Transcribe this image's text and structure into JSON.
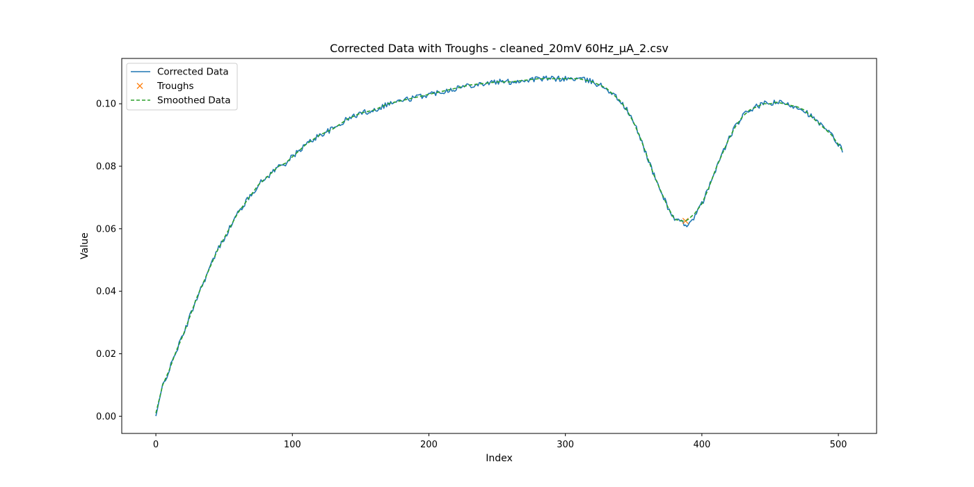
{
  "chart_data": {
    "type": "line",
    "title": "Corrected Data with Troughs - cleaned_20mV 60Hz_µA_2.csv",
    "xlabel": "Index",
    "ylabel": "Value",
    "xlim": [
      -25,
      528
    ],
    "ylim": [
      -0.0055,
      0.1145
    ],
    "xticks": [
      0,
      100,
      200,
      300,
      400,
      500
    ],
    "yticks": [
      0.0,
      0.02,
      0.04,
      0.06,
      0.08,
      0.1
    ],
    "ytick_labels": [
      "0.00",
      "0.02",
      "0.04",
      "0.06",
      "0.08",
      "0.10"
    ],
    "grid": false,
    "legend_position": "top-left",
    "series": [
      {
        "name": "Corrected Data",
        "style": "solid",
        "color": "#1f77b4",
        "x": [
          0,
          5,
          10,
          15,
          20,
          25,
          30,
          35,
          40,
          45,
          50,
          55,
          60,
          65,
          70,
          75,
          80,
          85,
          90,
          95,
          100,
          110,
          120,
          130,
          140,
          150,
          160,
          170,
          180,
          190,
          200,
          210,
          220,
          230,
          240,
          250,
          260,
          270,
          280,
          290,
          300,
          310,
          320,
          330,
          335,
          340,
          345,
          350,
          355,
          360,
          365,
          370,
          375,
          380,
          385,
          388,
          390,
          395,
          400,
          405,
          410,
          415,
          420,
          425,
          430,
          435,
          440,
          445,
          450,
          455,
          460,
          465,
          470,
          475,
          480,
          485,
          490,
          495,
          500,
          503
        ],
        "y": [
          0.0,
          0.01,
          0.015,
          0.021,
          0.026,
          0.032,
          0.038,
          0.043,
          0.048,
          0.053,
          0.057,
          0.061,
          0.065,
          0.068,
          0.071,
          0.074,
          0.076,
          0.078,
          0.08,
          0.081,
          0.083,
          0.087,
          0.09,
          0.092,
          0.095,
          0.097,
          0.098,
          0.1,
          0.101,
          0.102,
          0.103,
          0.104,
          0.105,
          0.106,
          0.1065,
          0.107,
          0.107,
          0.1075,
          0.108,
          0.108,
          0.108,
          0.108,
          0.107,
          0.105,
          0.103,
          0.101,
          0.098,
          0.094,
          0.089,
          0.083,
          0.077,
          0.072,
          0.067,
          0.063,
          0.062,
          0.0605,
          0.062,
          0.064,
          0.068,
          0.073,
          0.079,
          0.084,
          0.089,
          0.093,
          0.096,
          0.098,
          0.099,
          0.1,
          0.1,
          0.1005,
          0.1,
          0.0995,
          0.099,
          0.098,
          0.096,
          0.094,
          0.092,
          0.09,
          0.087,
          0.085
        ]
      },
      {
        "name": "Troughs",
        "style": "marker-x",
        "color": "#ff7f0e",
        "x": [
          388
        ],
        "y": [
          0.0625
        ]
      },
      {
        "name": "Smoothed Data",
        "style": "dashed",
        "color": "#2ca02c",
        "x": [
          0,
          5,
          10,
          15,
          20,
          25,
          30,
          35,
          40,
          45,
          50,
          55,
          60,
          65,
          70,
          75,
          80,
          85,
          90,
          95,
          100,
          110,
          120,
          130,
          140,
          150,
          160,
          170,
          180,
          190,
          200,
          210,
          220,
          230,
          240,
          250,
          260,
          270,
          280,
          290,
          300,
          310,
          320,
          330,
          335,
          340,
          345,
          350,
          355,
          360,
          365,
          370,
          375,
          380,
          385,
          388,
          390,
          395,
          400,
          405,
          410,
          415,
          420,
          425,
          430,
          435,
          440,
          445,
          450,
          455,
          460,
          465,
          470,
          475,
          480,
          485,
          490,
          495,
          500,
          503
        ],
        "y": [
          0.001,
          0.01,
          0.015,
          0.021,
          0.026,
          0.032,
          0.038,
          0.043,
          0.048,
          0.053,
          0.057,
          0.061,
          0.065,
          0.068,
          0.071,
          0.074,
          0.076,
          0.078,
          0.08,
          0.081,
          0.083,
          0.087,
          0.09,
          0.092,
          0.095,
          0.097,
          0.098,
          0.1,
          0.101,
          0.102,
          0.103,
          0.104,
          0.105,
          0.106,
          0.1065,
          0.107,
          0.107,
          0.1075,
          0.108,
          0.108,
          0.108,
          0.108,
          0.107,
          0.105,
          0.103,
          0.101,
          0.098,
          0.094,
          0.089,
          0.083,
          0.077,
          0.072,
          0.067,
          0.063,
          0.0625,
          0.0625,
          0.063,
          0.065,
          0.068,
          0.073,
          0.079,
          0.084,
          0.089,
          0.093,
          0.096,
          0.098,
          0.099,
          0.1,
          0.1,
          0.1005,
          0.1,
          0.0995,
          0.099,
          0.098,
          0.096,
          0.094,
          0.092,
          0.09,
          0.087,
          0.085
        ]
      }
    ]
  }
}
